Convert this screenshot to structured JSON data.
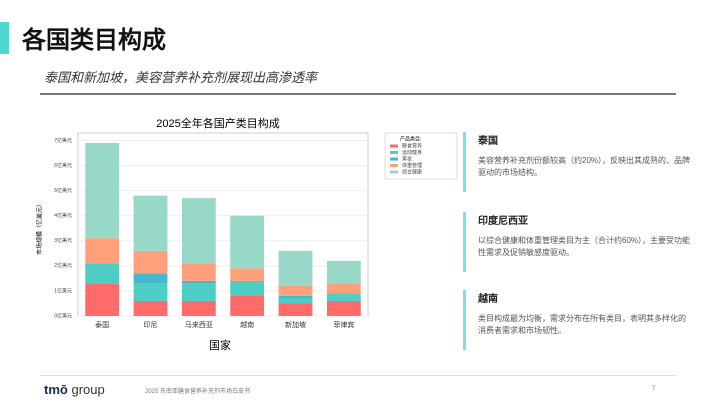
{
  "header": {
    "title": "各国类目构成",
    "subtitle": "泰国和新加坡，美容营养补充剂展现出高渗透率"
  },
  "chart_data": {
    "type": "stacked_bar",
    "title": "2025全年各国产类目构成",
    "x_label": "国家",
    "y_label": "市场规模（亿美元）",
    "categories": [
      "泰国",
      "印尼",
      "马来西亚",
      "越南",
      "新加坡",
      "菲律宾"
    ],
    "legend_title": "产品类目:",
    "series": [
      {
        "name": "膳食营养",
        "color": "#ff6b6b",
        "values": [
          1.3,
          0.6,
          0.6,
          0.8,
          0.5,
          0.6
        ]
      },
      {
        "name": "运动健身",
        "color": "#4ecdc4",
        "values": [
          0.8,
          0.7,
          0.7,
          0.6,
          0.2,
          0.3
        ]
      },
      {
        "name": "美妆",
        "color": "#45b7d1",
        "values": [
          0,
          0.4,
          0.1,
          0,
          0.1,
          0
        ]
      },
      {
        "name": "体重管理",
        "color": "#ffa07a",
        "values": [
          1.0,
          0.9,
          0.7,
          0.5,
          0.4,
          0.4
        ]
      },
      {
        "name": "综合健康",
        "color": "#98d8c8",
        "values": [
          3.8,
          2.2,
          2.6,
          2.1,
          1.4,
          0.9
        ]
      }
    ],
    "ylim": [
      0,
      7.3
    ],
    "yticks": [
      {
        "value": 0,
        "label": "0亿美元"
      },
      {
        "value": 1,
        "label": "1亿美元"
      },
      {
        "value": 2,
        "label": "2亿美元"
      },
      {
        "value": 3,
        "label": "3亿美元"
      },
      {
        "value": 4,
        "label": "4亿美元"
      },
      {
        "value": 5,
        "label": "5亿美元"
      },
      {
        "value": 6,
        "label": "6亿美元"
      },
      {
        "value": 7,
        "label": "7亿美元"
      }
    ],
    "grid": true
  },
  "panels": [
    {
      "title": "泰国",
      "text": "美容营养补充剂份额较高（约20%），反映出其成熟的、品牌驱动的市场结构。"
    },
    {
      "title": "印度尼西亚",
      "text": "以综合健康和体重管理类目为主（合计约60%），主要受功能性需求及促销敏感度驱动。"
    },
    {
      "title": "越南",
      "text": "类目构成最为均衡，需求分布在所有类目，表明其多样化的消费者需求和市场韧性。"
    }
  ],
  "footer": {
    "logo_a": "tmō",
    "logo_b": "group",
    "doc": "2025 东南亚膳食营养补充剂市场白皮书",
    "page": "7"
  }
}
